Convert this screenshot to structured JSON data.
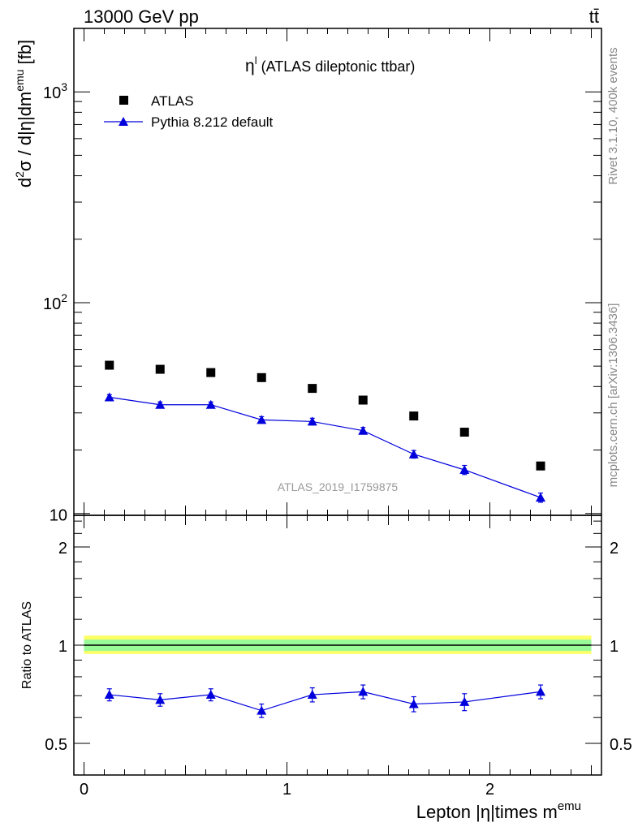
{
  "header": {
    "left": "13000 GeV pp",
    "right": "tt̄"
  },
  "side_text": {
    "rivet": "Rivet 3.1.10,  400k events",
    "mcplots": "mcplots.cern.ch [arXiv:1306.3436]"
  },
  "chart_data": [
    {
      "type": "scatter",
      "panel": "main",
      "title": "η^l (ATLAS dileptonic ttbar)",
      "title_main": "η",
      "title_sup": "l",
      "title_rest": " (ATLAS dileptonic ttbar)",
      "ylabel": "d²σ / d|η|dm^emu [fb]",
      "ylabel_parts": [
        "d",
        "2",
        "σ / d|η|dm",
        "emu",
        " [fb]"
      ],
      "yscale": "log",
      "ylim": [
        9.8,
        2000
      ],
      "xlim": [
        -0.05,
        2.55
      ],
      "y_tick_labels": [
        {
          "value": 10,
          "base": "10",
          "exp": ""
        },
        {
          "value": 100,
          "base": "10",
          "exp": "2"
        },
        {
          "value": 1000,
          "base": "10",
          "exp": "3"
        }
      ],
      "watermark": "ATLAS_2019_I1759875",
      "legend_position": "top-left",
      "series": [
        {
          "name": "ATLAS",
          "marker": "square",
          "color": "#000000",
          "x": [
            0.125,
            0.375,
            0.625,
            0.875,
            1.125,
            1.375,
            1.625,
            1.875,
            2.25
          ],
          "y": [
            50.5,
            48.3,
            46.6,
            44.1,
            39.2,
            34.5,
            29.0,
            24.3,
            16.8
          ],
          "yerr": [
            0,
            0,
            0,
            0,
            0,
            0,
            0,
            0,
            0
          ]
        },
        {
          "name": "Pythia 8.212 default",
          "marker": "triangle",
          "color": "#0000dd",
          "x": [
            0.125,
            0.375,
            0.625,
            0.875,
            1.125,
            1.375,
            1.625,
            1.875,
            2.25
          ],
          "y": [
            35.6,
            32.8,
            32.8,
            27.8,
            27.3,
            24.7,
            19.1,
            16.1,
            11.9
          ],
          "yerr": [
            1.0,
            1.0,
            1.0,
            1.0,
            1.0,
            0.9,
            0.8,
            0.8,
            0.6
          ]
        }
      ]
    },
    {
      "type": "line",
      "panel": "ratio",
      "ylabel": "Ratio to ATLAS",
      "xlabel": "Lepton |η|times m^emu",
      "xlabel_main": "Lepton |η|times m",
      "xlabel_sup": "emu",
      "yscale": "log",
      "ylim": [
        0.4,
        2.5
      ],
      "xlim": [
        -0.05,
        2.55
      ],
      "x_ticks": [
        0,
        1,
        2
      ],
      "x_tick_labels": [
        "0",
        "1",
        "2"
      ],
      "y_ticks": [
        0.5,
        1,
        2
      ],
      "y_tick_labels": [
        "0.5",
        "1",
        "2"
      ],
      "reference_band": {
        "center": 1.0,
        "inner": [
          0.96,
          1.04
        ],
        "outer": [
          0.94,
          1.07
        ],
        "inner_color": "#98fb98",
        "outer_color": "#ffff66"
      },
      "series": [
        {
          "name": "Pythia 8.212 default",
          "color": "#0000dd",
          "x": [
            0.125,
            0.375,
            0.625,
            0.875,
            1.125,
            1.375,
            1.625,
            1.875,
            2.25
          ],
          "y": [
            0.705,
            0.68,
            0.705,
            0.63,
            0.705,
            0.72,
            0.66,
            0.67,
            0.72
          ],
          "yerr": [
            0.03,
            0.03,
            0.03,
            0.03,
            0.035,
            0.035,
            0.035,
            0.04,
            0.035
          ]
        }
      ]
    }
  ]
}
